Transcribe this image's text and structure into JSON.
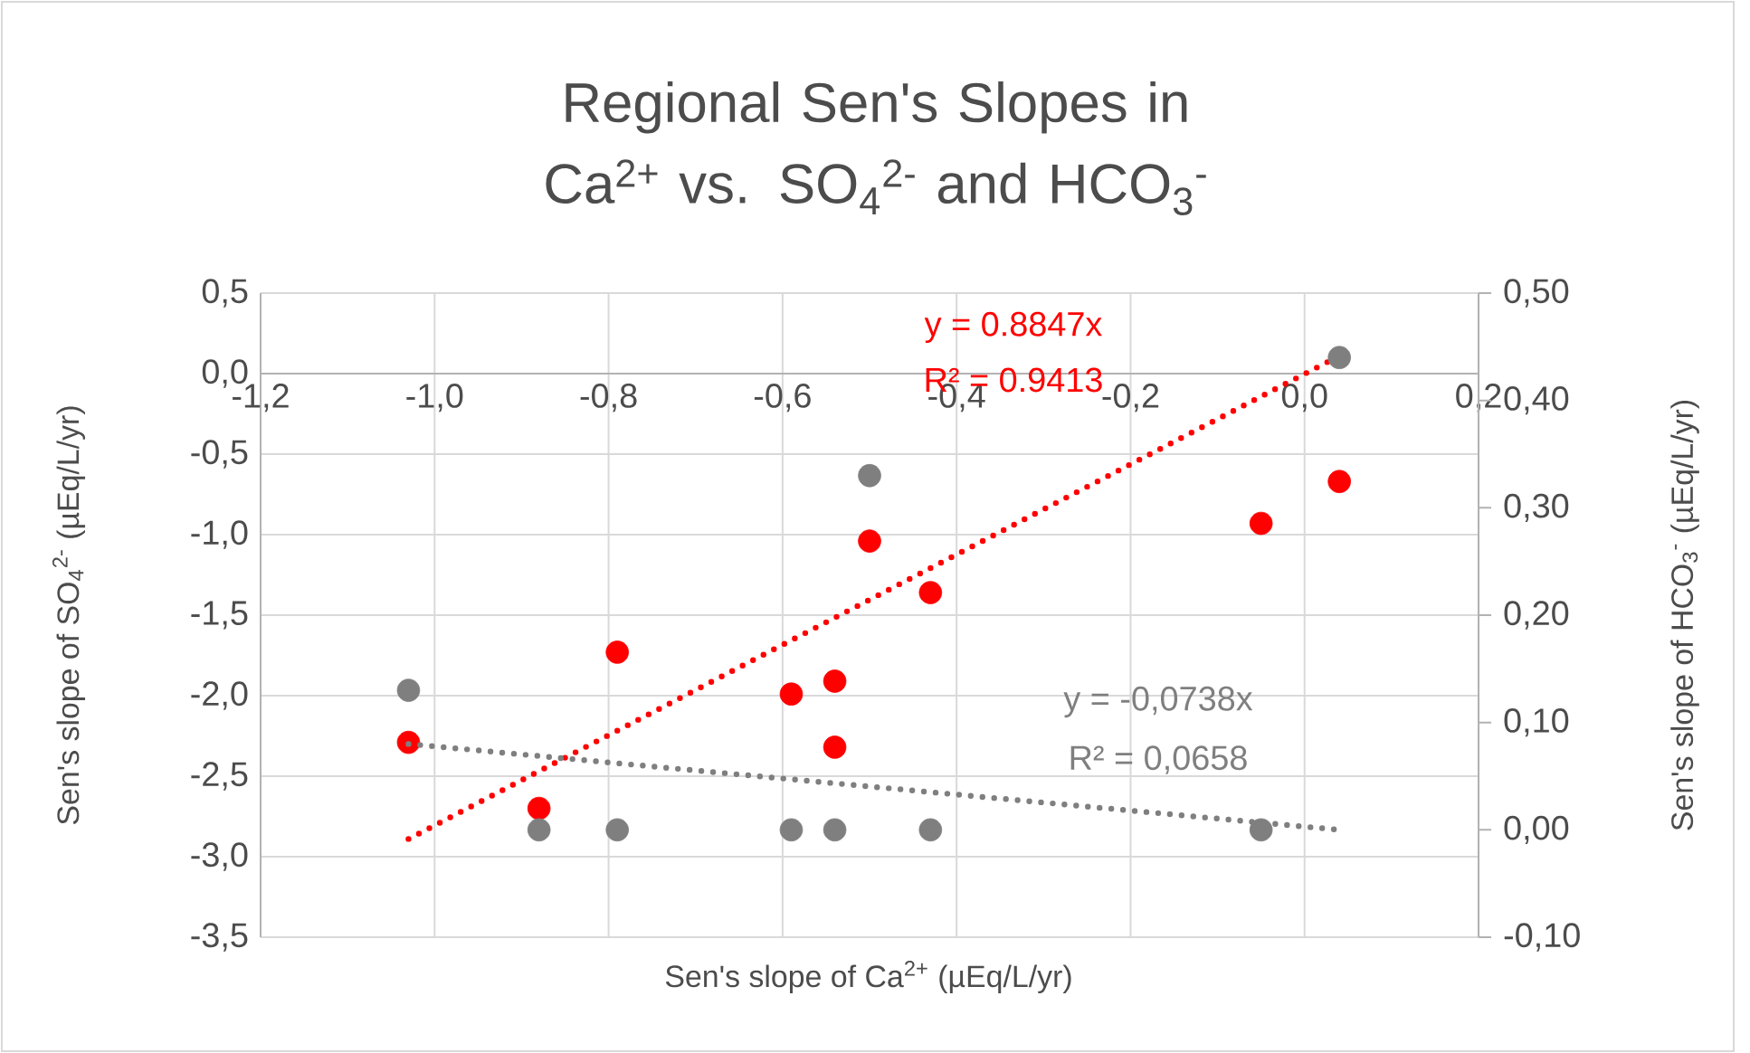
{
  "chart_data": {
    "type": "scatter",
    "title": "Regional Sen's Slopes in Ca$^{2+}$ vs. SO$_{4}$$^{2-}$ and HCO$_{3}$$^{-}$",
    "xlabel": "Sen's slope of Ca$^{2+}$ (µEq/L/yr)",
    "ylabel": "Sen's slope of SO$_{4}$$^{2-}$ (µEq/L/yr)",
    "y2label": "Sen's slope of HCO$_{3}$$^{-}$ (µEq/L/yr)",
    "x": [
      -1.03,
      -0.88,
      -0.79,
      -0.59,
      -0.54,
      -0.54,
      -0.5,
      -0.43,
      -0.05,
      0.04
    ],
    "series": [
      {
        "color": "#ff0000",
        "marker": "circle",
        "values": [
          -2.29,
          -2.7,
          -1.73,
          -1.99,
          -1.91,
          -2.32,
          -1.04,
          -1.36,
          -0.93,
          -0.67
        ]
      },
      {
        "color": "#7f7f7f",
        "marker": "circle",
        "axis": "y2",
        "x": [
          -1.03,
          -0.88,
          -0.79,
          -0.59,
          -0.54,
          -0.5,
          -0.43,
          -0.05,
          0.04
        ],
        "values": [
          0.13,
          0.0,
          0.0,
          0.0,
          0.0,
          0.33,
          0.0,
          0.0,
          0.44
        ]
      },
      {
        "type": "line",
        "color": "#ff0000",
        "line_style": "dotted",
        "x": [
          -1.03,
          0.04
        ],
        "values": [
          -2.89,
          0.11
        ]
      },
      {
        "type": "line",
        "color": "#7f7f7f",
        "line_style": "dotted",
        "axis": "y2",
        "x": [
          -1.03,
          0.04
        ],
        "values": [
          0.08,
          0.0
        ]
      }
    ],
    "annotations": [
      "y = 0.8847x",
      "R² = 0.9413",
      "y = -0,0738x",
      "R² = 0,0658"
    ],
    "xlim": [
      -1.2,
      0.2
    ],
    "xticks": [
      {
        "value": -1.2,
        "label": "-1,2"
      },
      {
        "value": -1.0,
        "label": "-1,0"
      },
      {
        "value": -0.8,
        "label": "-0,8"
      },
      {
        "value": -0.6,
        "label": "-0,6"
      },
      {
        "value": -0.4,
        "label": "-0,4"
      },
      {
        "value": -0.2,
        "label": "-0,2"
      },
      {
        "value": 0.0,
        "label": "0,0"
      },
      {
        "value": 0.2,
        "label": "0,2"
      }
    ],
    "ylim": [
      -3.5,
      0.5
    ],
    "yticks": [
      {
        "value": -3.5,
        "label": "-3,5"
      },
      {
        "value": -3.0,
        "label": "-3,0"
      },
      {
        "value": -2.5,
        "label": "-2,5"
      },
      {
        "value": -2.0,
        "label": "-2,0"
      },
      {
        "value": -1.5,
        "label": "-1,5"
      },
      {
        "value": -1.0,
        "label": "-1,0"
      },
      {
        "value": -0.5,
        "label": "-0,5"
      },
      {
        "value": 0.0,
        "label": "0,0"
      },
      {
        "value": 0.5,
        "label": "0,5"
      }
    ],
    "y2lim": [
      -0.1,
      0.5
    ],
    "y2ticks": [
      {
        "value": -0.1,
        "label": "-0,10"
      },
      {
        "value": 0.0,
        "label": "0,00"
      },
      {
        "value": 0.1,
        "label": "0,10"
      },
      {
        "value": 0.2,
        "label": "0,20"
      },
      {
        "value": 0.3,
        "label": "0,30"
      },
      {
        "value": 0.4,
        "label": "0,40"
      },
      {
        "value": 0.5,
        "label": "0,50"
      }
    ],
    "grid": true
  }
}
